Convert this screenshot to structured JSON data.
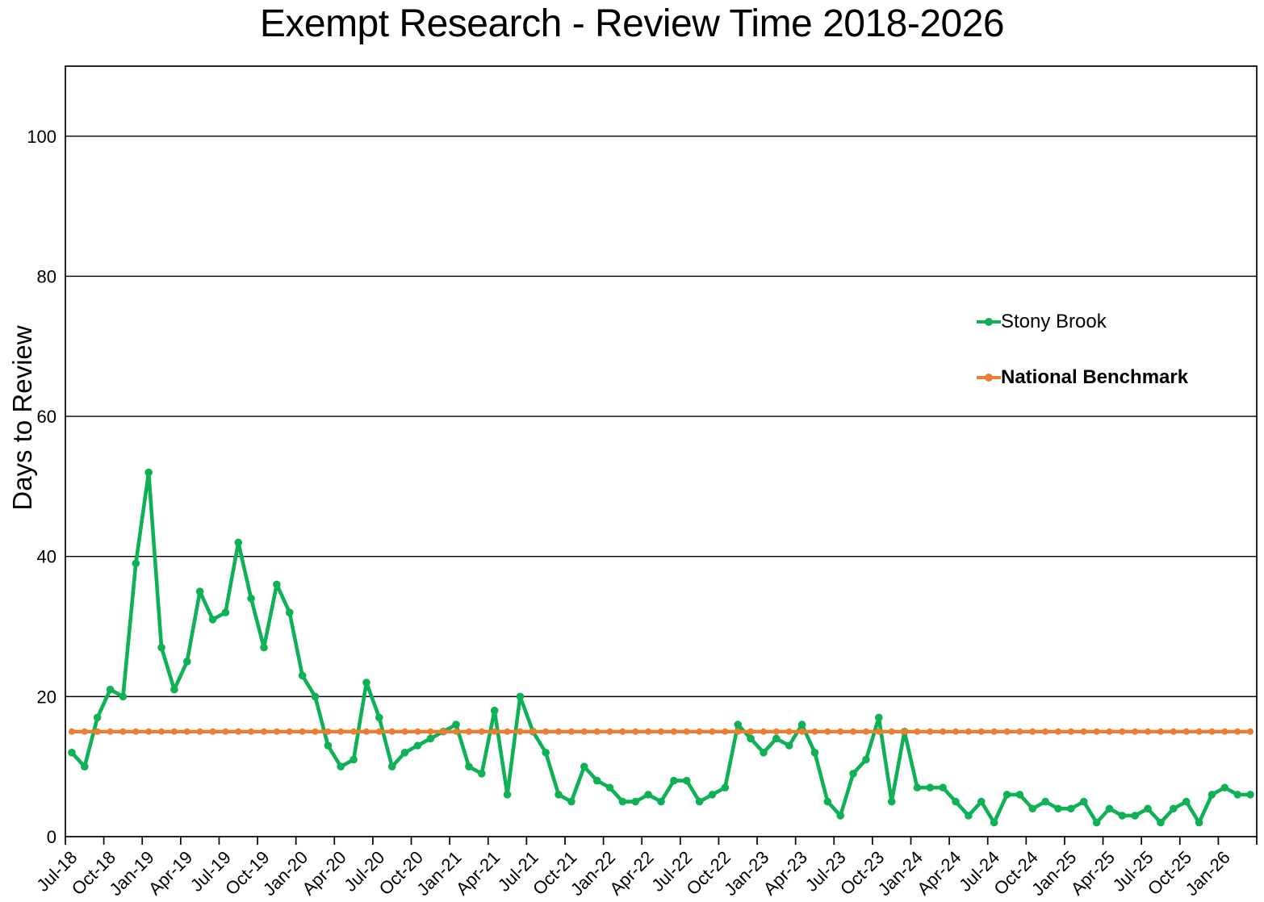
{
  "chart_data": {
    "type": "line",
    "title": "Exempt Research - Review Time 2018-2026",
    "ylabel": "Days to Review",
    "xlabel": "",
    "ylim": [
      0,
      110
    ],
    "yticks": [
      0,
      20,
      40,
      60,
      80,
      100
    ],
    "grid": "horizontal-black-lines",
    "legend_position": "middle-right",
    "axis_color": "#000000",
    "x": [
      "Jul-18",
      "Aug-18",
      "Sep-18",
      "Oct-18",
      "Nov-18",
      "Dec-18",
      "Jan-19",
      "Feb-19",
      "Mar-19",
      "Apr-19",
      "May-19",
      "Jun-19",
      "Jul-19",
      "Aug-19",
      "Sep-19",
      "Oct-19",
      "Nov-19",
      "Dec-19",
      "Jan-20",
      "Feb-20",
      "Mar-20",
      "Apr-20",
      "May-20",
      "Jun-20",
      "Jul-20",
      "Aug-20",
      "Sep-20",
      "Oct-20",
      "Nov-20",
      "Dec-20",
      "Jan-21",
      "Feb-21",
      "Mar-21",
      "Apr-21",
      "May-21",
      "Jun-21",
      "Jul-21",
      "Aug-21",
      "Sep-21",
      "Oct-21",
      "Nov-21",
      "Dec-21",
      "Jan-22",
      "Feb-22",
      "Mar-22",
      "Apr-22",
      "May-22",
      "Jun-22",
      "Jul-22",
      "Aug-22",
      "Sep-22",
      "Oct-22",
      "Nov-22",
      "Dec-22",
      "Jan-23",
      "Feb-23",
      "Mar-23",
      "Apr-23",
      "May-23",
      "Jun-23",
      "Jul-23",
      "Aug-23",
      "Sep-23",
      "Oct-23",
      "Nov-23",
      "Dec-23",
      "Jan-24",
      "Feb-24",
      "Mar-24",
      "Apr-24",
      "May-24",
      "Jun-24",
      "Jul-24",
      "Aug-24",
      "Sep-24",
      "Oct-24",
      "Nov-24",
      "Dec-24",
      "Jan-25",
      "Feb-25",
      "Mar-25",
      "Apr-25",
      "May-25",
      "Jun-25",
      "Jul-25",
      "Aug-25",
      "Sep-25",
      "Oct-25",
      "Nov-25",
      "Dec-25",
      "Jan-26",
      "Feb-26",
      "Mar-26"
    ],
    "x_axis_tick_labels": [
      "Jul-18",
      "Oct-18",
      "Jan-19",
      "Apr-19",
      "Jul-19",
      "Oct-19",
      "Jan-20",
      "Apr-20",
      "Jul-20",
      "Oct-20",
      "Jan-21",
      "Apr-21",
      "Jul-21",
      "Oct-21",
      "Jan-22",
      "Apr-22",
      "Jul-22",
      "Oct-22",
      "Jan-23",
      "Apr-23",
      "Jul-23",
      "Oct-23",
      "Jan-24",
      "Apr-24",
      "Jul-24",
      "Oct-24",
      "Jan-25",
      "Apr-25",
      "Jul-25",
      "Oct-25",
      "Jan-26"
    ],
    "x_tick_label_interval_months": 3,
    "series": [
      {
        "name": "Stony Brook",
        "color": "#0EB154",
        "marker": "circle",
        "values": [
          12,
          10,
          17,
          21,
          20,
          39,
          52,
          27,
          21,
          25,
          35,
          31,
          32,
          42,
          34,
          27,
          36,
          32,
          23,
          20,
          13,
          10,
          11,
          22,
          17,
          10,
          12,
          13,
          14,
          15,
          16,
          10,
          9,
          18,
          6,
          20,
          15,
          12,
          6,
          5,
          10,
          8,
          7,
          5,
          5,
          6,
          5,
          8,
          8,
          5,
          6,
          7,
          16,
          14,
          12,
          14,
          13,
          16,
          12,
          5,
          3,
          9,
          11,
          17,
          5,
          15,
          7,
          7,
          7,
          5,
          3,
          5,
          2,
          6,
          6,
          4,
          5,
          4,
          4,
          5,
          2,
          4,
          3,
          3,
          4,
          2,
          4,
          5,
          2,
          6,
          7,
          6,
          6
        ]
      },
      {
        "name": "National Benchmark",
        "color": "#ED7D31",
        "marker": "circle",
        "values": [
          15,
          15,
          15,
          15,
          15,
          15,
          15,
          15,
          15,
          15,
          15,
          15,
          15,
          15,
          15,
          15,
          15,
          15,
          15,
          15,
          15,
          15,
          15,
          15,
          15,
          15,
          15,
          15,
          15,
          15,
          15,
          15,
          15,
          15,
          15,
          15,
          15,
          15,
          15,
          15,
          15,
          15,
          15,
          15,
          15,
          15,
          15,
          15,
          15,
          15,
          15,
          15,
          15,
          15,
          15,
          15,
          15,
          15,
          15,
          15,
          15,
          15,
          15,
          15,
          15,
          15,
          15,
          15,
          15,
          15,
          15,
          15,
          15,
          15,
          15,
          15,
          15,
          15,
          15,
          15,
          15,
          15,
          15,
          15,
          15,
          15,
          15,
          15,
          15,
          15,
          15,
          15,
          15
        ]
      }
    ]
  },
  "legend": {
    "items": [
      {
        "label": "Stony Brook",
        "bold": false
      },
      {
        "label": "National Benchmark",
        "bold": true
      }
    ]
  }
}
